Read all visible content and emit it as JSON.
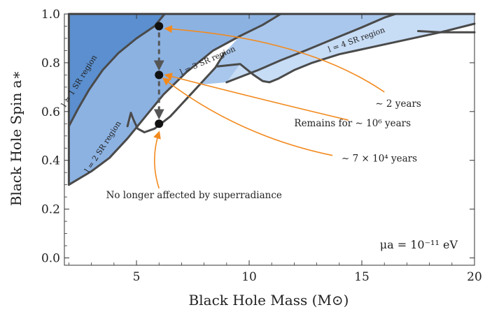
{
  "chart_data": {
    "type": "area",
    "title": "",
    "xlabel": "Black Hole Mass (M⊙)",
    "ylabel": "Black Hole Spin a∗",
    "xlim": [
      1.8,
      20
    ],
    "ylim": [
      -0.03,
      1.0
    ],
    "x_ticks": [
      5,
      10,
      15,
      20
    ],
    "x_tick_labels": [
      "5",
      "10",
      "15",
      "20"
    ],
    "y_ticks": [
      0.0,
      0.2,
      0.4,
      0.6,
      0.8,
      1.0
    ],
    "y_tick_labels": [
      "0.0",
      "0.2",
      "0.4",
      "0.6",
      "0.8",
      "1.0"
    ],
    "parameter_label": "μa = 10⁻¹¹ eV",
    "colors": {
      "region_l1": "#5b8fcf",
      "region_l2": "#8cb2e2",
      "region_l3": "#a9c7ec",
      "region_l4": "#c7dcf5",
      "outline": "#4a4a4a",
      "arrow": "#f28a1e",
      "point": "#111111"
    },
    "regions": [
      {
        "name": "l = 1 SR region",
        "color": "#5b8fcf",
        "points": [
          [
            2.0,
            1.0
          ],
          [
            6.25,
            1.0
          ],
          [
            5.8,
            0.95
          ],
          [
            5.0,
            0.9
          ],
          [
            4.2,
            0.84
          ],
          [
            3.5,
            0.77
          ],
          [
            2.9,
            0.69
          ],
          [
            2.4,
            0.61
          ],
          [
            2.0,
            0.54
          ]
        ]
      },
      {
        "name": "l = 2 SR region",
        "color": "#8cb2e2",
        "points": [
          [
            2.0,
            0.54
          ],
          [
            2.4,
            0.61
          ],
          [
            2.9,
            0.69
          ],
          [
            3.5,
            0.77
          ],
          [
            4.2,
            0.84
          ],
          [
            5.0,
            0.9
          ],
          [
            5.8,
            0.95
          ],
          [
            6.25,
            1.0
          ],
          [
            11.4,
            1.0
          ],
          [
            10.6,
            0.955
          ],
          [
            9.6,
            0.91
          ],
          [
            8.4,
            0.85
          ],
          [
            7.2,
            0.76
          ],
          [
            6.2,
            0.67
          ],
          [
            5.4,
            0.58
          ],
          [
            4.6,
            0.49
          ],
          [
            3.8,
            0.41
          ],
          [
            3.0,
            0.355
          ],
          [
            2.0,
            0.3
          ]
        ]
      },
      {
        "name": "l = 3 SR region",
        "color": "#a9c7ec",
        "points": [
          [
            4.6,
            0.54
          ],
          [
            4.75,
            0.595
          ],
          [
            4.85,
            0.57
          ],
          [
            5.05,
            0.53
          ],
          [
            5.35,
            0.515
          ],
          [
            5.8,
            0.53
          ],
          [
            6.5,
            0.58
          ],
          [
            7.2,
            0.65
          ],
          [
            7.8,
            0.71
          ],
          [
            8.5,
            0.78
          ],
          [
            8.9,
            0.84
          ],
          [
            9.6,
            0.91
          ],
          [
            10.6,
            0.955
          ],
          [
            11.4,
            1.0
          ],
          [
            16.5,
            1.0
          ],
          [
            16.0,
            0.985
          ],
          [
            15.0,
            0.945
          ],
          [
            13.8,
            0.9
          ],
          [
            12.5,
            0.85
          ],
          [
            11.4,
            0.81
          ],
          [
            10.4,
            0.77
          ],
          [
            9.0,
            0.72
          ],
          [
            7.8,
            0.71
          ],
          [
            7.2,
            0.65
          ],
          [
            6.5,
            0.58
          ],
          [
            5.8,
            0.53
          ],
          [
            5.35,
            0.515
          ],
          [
            5.05,
            0.53
          ],
          [
            4.85,
            0.57
          ],
          [
            4.6,
            0.54
          ]
        ]
      },
      {
        "name": "l = 4 SR region",
        "color": "#c7dcf5",
        "points": [
          [
            9.0,
            0.72
          ],
          [
            10.4,
            0.77
          ],
          [
            11.4,
            0.81
          ],
          [
            12.5,
            0.85
          ],
          [
            13.8,
            0.9
          ],
          [
            15.0,
            0.945
          ],
          [
            16.0,
            0.985
          ],
          [
            16.5,
            1.0
          ],
          [
            20.0,
            1.0
          ],
          [
            20.0,
            0.96
          ],
          [
            18.5,
            0.925
          ],
          [
            17.0,
            0.895
          ],
          [
            15.5,
            0.865
          ],
          [
            14.0,
            0.835
          ],
          [
            12.8,
            0.8
          ],
          [
            12.0,
            0.77
          ],
          [
            11.3,
            0.735
          ],
          [
            10.9,
            0.72
          ],
          [
            10.6,
            0.725
          ],
          [
            10.2,
            0.75
          ],
          [
            9.6,
            0.795
          ],
          [
            9.0,
            0.72
          ]
        ]
      }
    ],
    "boundaries": [
      {
        "name": "l1-l2",
        "points": [
          [
            2.0,
            0.54
          ],
          [
            2.4,
            0.61
          ],
          [
            2.9,
            0.69
          ],
          [
            3.5,
            0.77
          ],
          [
            4.2,
            0.84
          ],
          [
            5.0,
            0.9
          ],
          [
            5.8,
            0.95
          ],
          [
            6.25,
            1.0
          ]
        ]
      },
      {
        "name": "l2-outer",
        "points": [
          [
            2.0,
            0.3
          ],
          [
            3.0,
            0.355
          ],
          [
            3.8,
            0.41
          ],
          [
            4.6,
            0.49
          ],
          [
            5.4,
            0.58
          ],
          [
            6.2,
            0.67
          ],
          [
            7.2,
            0.76
          ],
          [
            8.4,
            0.85
          ],
          [
            9.6,
            0.91
          ],
          [
            10.6,
            0.955
          ],
          [
            11.4,
            1.0
          ]
        ]
      },
      {
        "name": "l3-lower",
        "points": [
          [
            4.6,
            0.54
          ],
          [
            4.75,
            0.595
          ],
          [
            4.85,
            0.57
          ],
          [
            5.05,
            0.53
          ],
          [
            5.35,
            0.515
          ],
          [
            5.8,
            0.53
          ],
          [
            6.5,
            0.58
          ],
          [
            7.2,
            0.65
          ],
          [
            7.8,
            0.71
          ],
          [
            8.5,
            0.78
          ],
          [
            8.9,
            0.84
          ]
        ]
      },
      {
        "name": "l3-l4",
        "points": [
          [
            9.0,
            0.72
          ],
          [
            10.4,
            0.77
          ],
          [
            11.4,
            0.81
          ],
          [
            12.5,
            0.85
          ],
          [
            13.8,
            0.9
          ],
          [
            15.0,
            0.945
          ],
          [
            16.0,
            0.985
          ],
          [
            16.5,
            1.0
          ]
        ]
      },
      {
        "name": "l4-lower",
        "points": [
          [
            8.6,
            0.785
          ],
          [
            9.6,
            0.795
          ],
          [
            10.2,
            0.75
          ],
          [
            10.6,
            0.725
          ],
          [
            10.9,
            0.72
          ],
          [
            11.3,
            0.735
          ],
          [
            12.0,
            0.77
          ],
          [
            12.8,
            0.8
          ],
          [
            14.0,
            0.835
          ],
          [
            15.5,
            0.865
          ],
          [
            17.0,
            0.895
          ],
          [
            18.5,
            0.925
          ],
          [
            20.0,
            0.96
          ]
        ]
      },
      {
        "name": "top-right",
        "points": [
          [
            17.5,
            0.93
          ],
          [
            18.5,
            0.925
          ],
          [
            20.0,
            0.925
          ]
        ]
      },
      {
        "name": "outer",
        "points": [
          [
            2.0,
            0.3
          ],
          [
            2.0,
            1.0
          ],
          [
            20.0,
            1.0
          ]
        ]
      }
    ],
    "points": [
      {
        "x": 6.0,
        "y": 0.95
      },
      {
        "x": 6.0,
        "y": 0.75
      },
      {
        "x": 6.0,
        "y": 0.55
      }
    ],
    "region_labels": [
      {
        "text": "l = 1 SR region",
        "x": 2.55,
        "y": 0.72,
        "angle": -58
      },
      {
        "text": "l = 2 SR region",
        "x": 3.6,
        "y": 0.45,
        "angle": -57
      },
      {
        "text": "l = 3 SR region",
        "x": 8.2,
        "y": 0.8,
        "angle": -24
      },
      {
        "text": "l = 4 SR region",
        "x": 14.8,
        "y": 0.885,
        "angle": -20
      }
    ],
    "annotations": [
      {
        "text": "∼ 2 years",
        "x": 15.6,
        "y": 0.62
      },
      {
        "text": "Remains for ∼ 10⁶ years",
        "x": 12.0,
        "y": 0.54
      },
      {
        "text": "∼ 7 × 10⁴ years",
        "x": 14.1,
        "y": 0.395
      },
      {
        "text": "No longer affected by superradiance",
        "x": 3.65,
        "y": 0.245
      }
    ],
    "arrows": [
      {
        "from": [
          16.0,
          0.68
        ],
        "ctrl": [
          12.5,
          0.9
        ],
        "to": [
          6.3,
          0.94
        ]
      },
      {
        "from": [
          14.4,
          0.565
        ],
        "ctrl": [
          10.5,
          0.65
        ],
        "to": [
          6.3,
          0.75
        ]
      },
      {
        "from": [
          13.7,
          0.42
        ],
        "ctrl": [
          9.5,
          0.5
        ],
        "to": [
          6.2,
          0.735
        ]
      },
      {
        "from": [
          6.0,
          0.285
        ],
        "ctrl": [
          5.6,
          0.4
        ],
        "to": [
          6.0,
          0.515
        ]
      }
    ]
  }
}
